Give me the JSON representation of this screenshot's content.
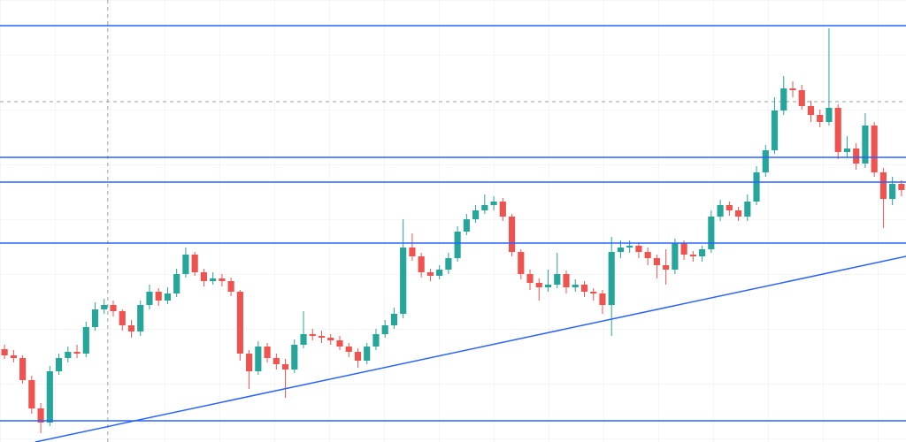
{
  "chart_data": {
    "type": "candlestick",
    "open": [
      105,
      98,
      95,
      70,
      38,
      22,
      80,
      95,
      102,
      100,
      130,
      150,
      155,
      148,
      132,
      125,
      155,
      170,
      160,
      168,
      190,
      212,
      192,
      182,
      185,
      182,
      170,
      100,
      80,
      108,
      95,
      88,
      82,
      110,
      122,
      120,
      118,
      115,
      108,
      102,
      92,
      108,
      122,
      132,
      145,
      220,
      210,
      192,
      188,
      195,
      208,
      238,
      252,
      262,
      268,
      272,
      255,
      215,
      190,
      180,
      175,
      178,
      190,
      175,
      178,
      170,
      168,
      155,
      215,
      220,
      222,
      215,
      208,
      200,
      195,
      225,
      212,
      210,
      218,
      255,
      268,
      262,
      255,
      272,
      305,
      330,
      375,
      400,
      398,
      380,
      370,
      362,
      378,
      328,
      332,
      315,
      358,
      305,
      275,
      292
    ],
    "high": [
      110,
      104,
      98,
      75,
      44,
      86,
      100,
      108,
      110,
      136,
      158,
      162,
      160,
      150,
      138,
      160,
      178,
      174,
      175,
      196,
      220,
      215,
      196,
      192,
      190,
      186,
      172,
      104,
      114,
      112,
      100,
      94,
      116,
      148,
      128,
      126,
      122,
      120,
      112,
      106,
      112,
      128,
      138,
      152,
      252,
      236,
      214,
      196,
      200,
      214,
      244,
      258,
      268,
      280,
      278,
      276,
      258,
      218,
      195,
      185,
      195,
      214,
      194,
      184,
      182,
      174,
      172,
      232,
      228,
      228,
      226,
      220,
      212,
      218,
      230,
      228,
      216,
      222,
      262,
      274,
      272,
      266,
      280,
      312,
      336,
      390,
      414,
      408,
      404,
      386,
      376,
      468,
      382,
      346,
      338,
      372,
      362,
      310,
      300,
      296
    ],
    "low": [
      94,
      90,
      66,
      32,
      10,
      18,
      76,
      90,
      95,
      96,
      126,
      145,
      142,
      126,
      118,
      120,
      150,
      154,
      156,
      164,
      186,
      188,
      176,
      178,
      176,
      165,
      92,
      60,
      76,
      90,
      82,
      50,
      78,
      106,
      115,
      112,
      110,
      104,
      96,
      84,
      88,
      104,
      118,
      128,
      140,
      205,
      186,
      182,
      184,
      190,
      204,
      234,
      248,
      258,
      262,
      250,
      210,
      184,
      172,
      160,
      170,
      174,
      168,
      170,
      164,
      160,
      145,
      120,
      208,
      214,
      208,
      200,
      185,
      178,
      190,
      206,
      204,
      204,
      214,
      250,
      256,
      250,
      250,
      268,
      300,
      326,
      370,
      390,
      376,
      362,
      356,
      358,
      320,
      322,
      308,
      310,
      300,
      242,
      268,
      278
    ],
    "close": [
      98,
      95,
      70,
      38,
      22,
      80,
      95,
      102,
      100,
      130,
      150,
      155,
      148,
      132,
      125,
      155,
      170,
      160,
      168,
      190,
      212,
      192,
      182,
      185,
      182,
      170,
      100,
      80,
      108,
      95,
      88,
      82,
      110,
      122,
      120,
      118,
      115,
      108,
      102,
      92,
      108,
      122,
      132,
      145,
      220,
      210,
      192,
      188,
      195,
      208,
      238,
      252,
      262,
      268,
      272,
      255,
      215,
      190,
      180,
      175,
      178,
      190,
      175,
      178,
      170,
      168,
      155,
      215,
      220,
      222,
      215,
      208,
      200,
      195,
      225,
      212,
      210,
      218,
      255,
      268,
      262,
      255,
      272,
      305,
      330,
      375,
      400,
      398,
      380,
      370,
      362,
      378,
      328,
      332,
      315,
      358,
      305,
      275,
      292,
      285
    ],
    "up_color": "#26a69a",
    "down_color": "#ef5350",
    "xlim": [
      -0.5,
      99.5
    ],
    "ylim": [
      0,
      500
    ],
    "hlines": {
      "values": [
        471,
        322,
        294,
        225,
        24
      ],
      "color": "#2962ff"
    },
    "trendline": {
      "x": [
        3.4,
        99.5
      ],
      "values": [
        0,
        210
      ],
      "color": "#2962ff"
    },
    "crosshair": {
      "x": 11.4,
      "y": 385,
      "color": "#9e9e9e"
    }
  }
}
